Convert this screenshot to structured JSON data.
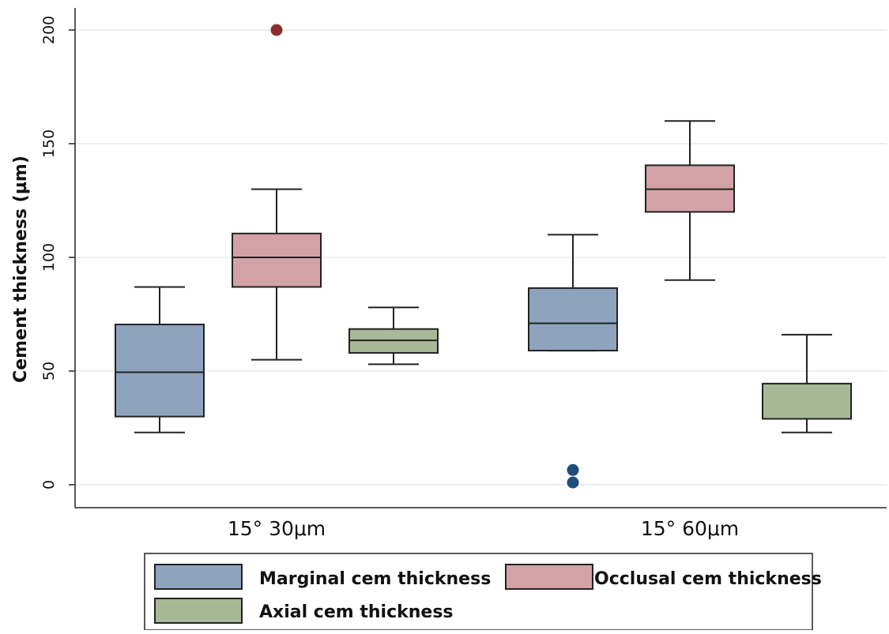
{
  "chart_data": {
    "type": "box",
    "title": "",
    "xlabel": "",
    "ylabel": "Cement thickness (µm)",
    "ylim": [
      -10,
      210
    ],
    "yticks": [
      0,
      50,
      100,
      150,
      200
    ],
    "grid": true,
    "categories": [
      "15° 30μm",
      "15° 60μm"
    ],
    "series": [
      {
        "name": "Marginal cem thickness",
        "color": "#8ea4be",
        "outlier_color": "#1f4e79",
        "boxes": [
          {
            "min": 23,
            "q1": 30,
            "median": 49.5,
            "q3": 70.5,
            "max": 87,
            "outliers": []
          },
          {
            "min": 59,
            "q1": 59,
            "median": 71,
            "q3": 86.5,
            "max": 110,
            "outliers": [
              1,
              6.5
            ]
          }
        ]
      },
      {
        "name": "Occlusal cem thickness",
        "color": "#d3a2a7",
        "outlier_color": "#8b2e2e",
        "boxes": [
          {
            "min": 55,
            "q1": 87,
            "median": 100,
            "q3": 110.5,
            "max": 130,
            "outliers": [
              200
            ]
          },
          {
            "min": 90,
            "q1": 120,
            "median": 130,
            "q3": 140.5,
            "max": 160,
            "outliers": []
          }
        ]
      },
      {
        "name": "Axial cem thickness",
        "color": "#a7b996",
        "outlier_color": "#5a6e3a",
        "boxes": [
          {
            "min": 53,
            "q1": 58,
            "median": 63.5,
            "q3": 68.5,
            "max": 78,
            "outliers": []
          },
          {
            "min": 23,
            "q1": 29,
            "median": 29,
            "q3": 44.5,
            "max": 66,
            "outliers": []
          }
        ]
      }
    ],
    "legend": {
      "position": "bottom",
      "items": [
        "Marginal cem thickness",
        "Occlusal cem thickness",
        "Axial cem thickness"
      ]
    }
  }
}
